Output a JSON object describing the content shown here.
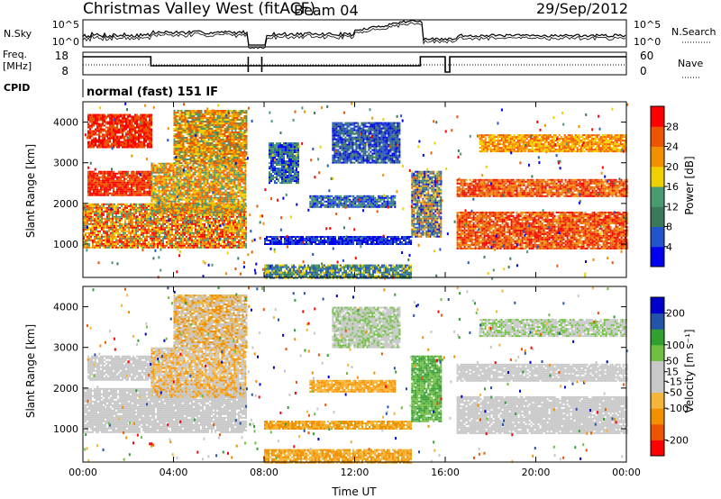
{
  "header": {
    "title": "Christmas Valley West (fitACF)",
    "beam": "Beam 04",
    "date": "29/Sep/2012"
  },
  "noise_panel": {
    "left_label": "N.Sky",
    "right_label": "N.Search",
    "left_ticks": [
      "10^5",
      "10^0"
    ],
    "right_ticks": [
      "10^5",
      "10^0"
    ]
  },
  "freq_panel": {
    "left_label_1": "Freq.",
    "left_label_2": "[MHz]",
    "left_ticks": [
      "18",
      "8"
    ],
    "right_label": "Nave",
    "right_ticks": [
      "60",
      "0"
    ]
  },
  "cpid": {
    "label": "CPID",
    "value": "normal (fast) 151 IF"
  },
  "colors": {
    "power_scale": [
      "#0000ee",
      "#2255cc",
      "#3a7a5a",
      "#4a9a70",
      "#f0d000",
      "#f39000",
      "#ee5500",
      "#ff0000"
    ],
    "velocity_scale": [
      "#ff0000",
      "#ee5500",
      "#f39000",
      "#f5b43a",
      "#c8c8c8",
      "#c8c8c8",
      "#70c040",
      "#30a030",
      "#2255aa",
      "#0000cc"
    ]
  },
  "chart_data": [
    {
      "type": "heatmap",
      "panel": "power",
      "ylabel": "Slant Range [km]",
      "y_ticks": [
        1000,
        2000,
        3000,
        4000
      ],
      "ylim": [
        180,
        4500
      ],
      "x_ticks": [
        "00:00",
        "04:00",
        "08:00",
        "12:00",
        "16:00",
        "20:00",
        "00:00"
      ],
      "xlim_hours": [
        0,
        24
      ],
      "colorbar": {
        "label": "Power [dB]",
        "ticks": [
          4,
          8,
          12,
          16,
          20,
          24,
          28
        ],
        "range": [
          0,
          32
        ]
      },
      "bands": [
        {
          "t0": 0.0,
          "t1": 7.2,
          "r0": 900,
          "r1": 2000,
          "c0": 3,
          "c1": 7
        },
        {
          "t0": 0.2,
          "t1": 3.0,
          "r0": 2200,
          "r1": 2800,
          "c0": 6,
          "c1": 7
        },
        {
          "t0": 0.2,
          "t1": 3.0,
          "r0": 3400,
          "r1": 4200,
          "c0": 6,
          "c1": 7
        },
        {
          "t0": 3.0,
          "t1": 7.2,
          "r0": 1800,
          "r1": 3000,
          "c0": 3,
          "c1": 6
        },
        {
          "t0": 4.0,
          "t1": 7.2,
          "r0": 3000,
          "r1": 4300,
          "c0": 3,
          "c1": 6
        },
        {
          "t0": 8.0,
          "t1": 14.5,
          "r0": 1000,
          "r1": 1200,
          "c0": 0,
          "c1": 1
        },
        {
          "t0": 8.0,
          "t1": 14.5,
          "r0": 180,
          "r1": 500,
          "c0": 1,
          "c1": 4
        },
        {
          "t0": 8.2,
          "t1": 9.5,
          "r0": 2500,
          "r1": 3500,
          "c0": 0,
          "c1": 3
        },
        {
          "t0": 10.0,
          "t1": 13.8,
          "r0": 1900,
          "r1": 2200,
          "c0": 0,
          "c1": 3
        },
        {
          "t0": 11.0,
          "t1": 14.0,
          "r0": 3000,
          "r1": 4000,
          "c0": 0,
          "c1": 2
        },
        {
          "t0": 14.5,
          "t1": 15.8,
          "r0": 1200,
          "r1": 2800,
          "c0": 0,
          "c1": 6
        },
        {
          "t0": 16.5,
          "t1": 24.0,
          "r0": 900,
          "r1": 1800,
          "c0": 5,
          "c1": 7
        },
        {
          "t0": 16.5,
          "t1": 24.0,
          "r0": 2200,
          "r1": 2600,
          "c0": 5,
          "c1": 7
        },
        {
          "t0": 17.5,
          "t1": 24.0,
          "r0": 3300,
          "r1": 3700,
          "c0": 4,
          "c1": 6
        }
      ]
    },
    {
      "type": "heatmap",
      "panel": "velocity",
      "ylabel": "Slant Range [km]",
      "y_ticks": [
        1000,
        2000,
        3000,
        4000
      ],
      "ylim": [
        180,
        4500
      ],
      "x_ticks": [
        "00:00",
        "04:00",
        "08:00",
        "12:00",
        "16:00",
        "20:00",
        "00:00"
      ],
      "xlim_hours": [
        0,
        24
      ],
      "xlabel": "Time UT",
      "colorbar": {
        "label": "Velocity [m s⁻¹]",
        "ticks": [
          -200,
          -100,
          -50,
          -15,
          15,
          50,
          100,
          200
        ],
        "range": [
          -250,
          250
        ]
      },
      "bands": [
        {
          "t0": 0.0,
          "t1": 7.2,
          "r0": 900,
          "r1": 2000,
          "c0": 4,
          "c1": 5
        },
        {
          "t0": 0.2,
          "t1": 3.0,
          "r0": 2200,
          "r1": 2800,
          "c0": 4,
          "c1": 5
        },
        {
          "t0": 3.0,
          "t1": 7.2,
          "r0": 1800,
          "r1": 3000,
          "c0": 2,
          "c1": 5
        },
        {
          "t0": 4.0,
          "t1": 7.2,
          "r0": 3000,
          "r1": 4300,
          "c0": 2,
          "c1": 5
        },
        {
          "t0": 8.0,
          "t1": 14.5,
          "r0": 1000,
          "r1": 1200,
          "c0": 2,
          "c1": 3
        },
        {
          "t0": 8.0,
          "t1": 14.5,
          "r0": 180,
          "r1": 500,
          "c0": 2,
          "c1": 3
        },
        {
          "t0": 10.0,
          "t1": 13.8,
          "r0": 1900,
          "r1": 2200,
          "c0": 2,
          "c1": 3
        },
        {
          "t0": 11.0,
          "t1": 14.0,
          "r0": 3000,
          "r1": 4000,
          "c0": 4,
          "c1": 6
        },
        {
          "t0": 14.5,
          "t1": 15.8,
          "r0": 1200,
          "r1": 2800,
          "c0": 6,
          "c1": 7
        },
        {
          "t0": 16.5,
          "t1": 24.0,
          "r0": 900,
          "r1": 1800,
          "c0": 4,
          "c1": 5
        },
        {
          "t0": 16.5,
          "t1": 24.0,
          "r0": 2200,
          "r1": 2600,
          "c0": 4,
          "c1": 5
        },
        {
          "t0": 17.5,
          "t1": 24.0,
          "r0": 3300,
          "r1": 3700,
          "c0": 4,
          "c1": 6
        }
      ]
    }
  ]
}
